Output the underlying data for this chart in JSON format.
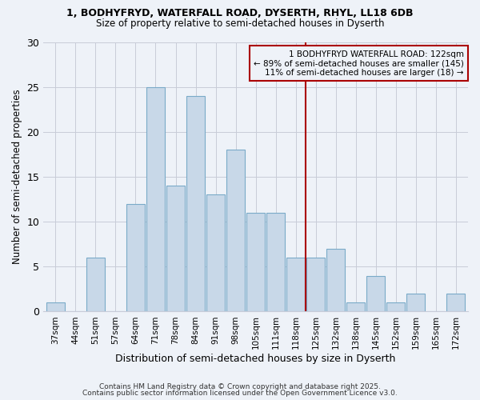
{
  "title1": "1, BODHYFRYD, WATERFALL ROAD, DYSERTH, RHYL, LL18 6DB",
  "title2": "Size of property relative to semi-detached houses in Dyserth",
  "xlabel": "Distribution of semi-detached houses by size in Dyserth",
  "ylabel": "Number of semi-detached properties",
  "categories": [
    "37sqm",
    "44sqm",
    "51sqm",
    "57sqm",
    "64sqm",
    "71sqm",
    "78sqm",
    "84sqm",
    "91sqm",
    "98sqm",
    "105sqm",
    "111sqm",
    "118sqm",
    "125sqm",
    "132sqm",
    "138sqm",
    "145sqm",
    "152sqm",
    "159sqm",
    "165sqm",
    "172sqm"
  ],
  "values": [
    1,
    0,
    6,
    0,
    12,
    25,
    14,
    24,
    13,
    18,
    11,
    11,
    6,
    6,
    7,
    1,
    4,
    1,
    2,
    0,
    2
  ],
  "bar_color": "#c8d8e8",
  "bar_edge_color": "#7aaac8",
  "vline_color": "#aa0000",
  "vline_x_index": 13,
  "annotation_title": "1 BODHYFRYD WATERFALL ROAD: 122sqm",
  "annotation_line1": "← 89% of semi-detached houses are smaller (145)",
  "annotation_line2": "11% of semi-detached houses are larger (18) →",
  "annotation_box_color": "#aa0000",
  "ylim": [
    0,
    30
  ],
  "yticks": [
    0,
    5,
    10,
    15,
    20,
    25,
    30
  ],
  "footer_line1": "Contains HM Land Registry data © Crown copyright and database right 2025.",
  "footer_line2": "Contains public sector information licensed under the Open Government Licence v3.0.",
  "bg_color": "#eef2f8"
}
